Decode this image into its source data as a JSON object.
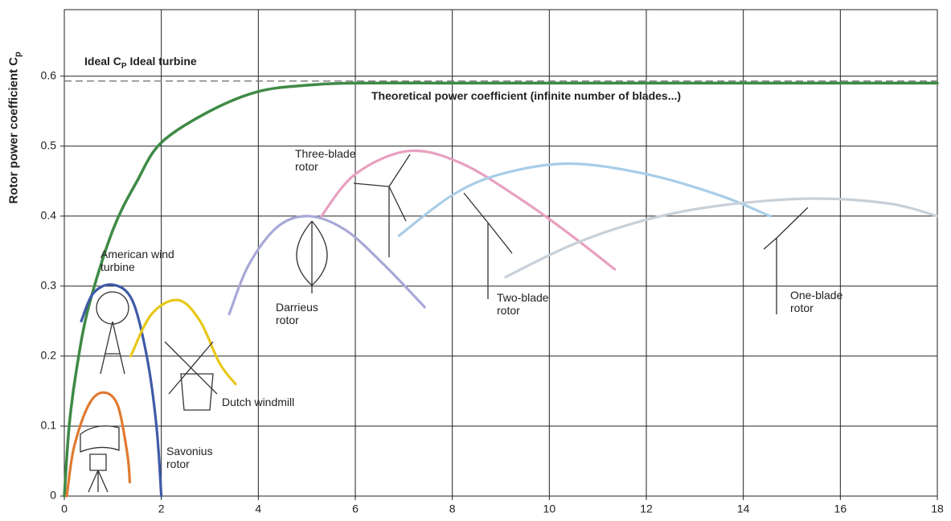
{
  "chart_data": {
    "type": "line",
    "y_label": [
      "Rotor power coefficient C",
      "p"
    ],
    "ideal_label": [
      "Ideal C",
      "P",
      " Ideal turbine"
    ],
    "ideal_cp": 0.593,
    "xlim": [
      0,
      18
    ],
    "xticks": [
      0,
      2,
      4,
      6,
      8,
      10,
      12,
      14,
      16,
      18
    ],
    "ylim": [
      0,
      0.695
    ],
    "yticks": [
      0,
      0.1,
      0.2,
      0.3,
      0.4,
      0.5,
      0.6
    ],
    "grid": true,
    "series": [
      {
        "name": "Theoretical power coefficient (infinite number of blades...)",
        "color": "#3f8a45",
        "x": [
          0,
          0.1,
          0.25,
          0.5,
          1,
          1.5,
          2,
          3,
          4,
          5,
          6,
          8,
          10,
          12,
          14,
          16,
          18
        ],
        "values": [
          0,
          0.1,
          0.18,
          0.27,
          0.38,
          0.45,
          0.505,
          0.55,
          0.578,
          0.587,
          0.59,
          0.59,
          0.59,
          0.59,
          0.59,
          0.59,
          0.59
        ]
      },
      {
        "name": "American wind turbine",
        "color": "#3f5aa8",
        "x": [
          0.35,
          0.6,
          1.0,
          1.4,
          1.7,
          1.9,
          2.0
        ],
        "values": [
          0.25,
          0.29,
          0.302,
          0.28,
          0.2,
          0.1,
          0
        ]
      },
      {
        "name": "Savonius rotor",
        "color": "#e07a30",
        "x": [
          0.05,
          0.2,
          0.5,
          0.8,
          1.1,
          1.3,
          1.35
        ],
        "values": [
          0,
          0.07,
          0.13,
          0.148,
          0.13,
          0.06,
          0.02
        ]
      },
      {
        "name": "Dutch windmill",
        "color": "#e8c81a",
        "x": [
          1.37,
          1.8,
          2.35,
          2.8,
          3.2,
          3.53
        ],
        "values": [
          0.2,
          0.26,
          0.28,
          0.25,
          0.19,
          0.16
        ]
      },
      {
        "name": "Darrieus rotor",
        "color": "#a8a8d8",
        "x": [
          3.4,
          3.8,
          4.4,
          5.05,
          5.8,
          6.6,
          7.43
        ],
        "values": [
          0.26,
          0.33,
          0.385,
          0.4,
          0.38,
          0.33,
          0.27
        ]
      },
      {
        "name": "Three-blade rotor",
        "color": "#e8a0c0",
        "x": [
          5.3,
          6,
          7.1,
          8.2,
          9.5,
          10.5,
          11.35
        ],
        "values": [
          0.4,
          0.46,
          0.493,
          0.475,
          0.42,
          0.37,
          0.324
        ]
      },
      {
        "name": "Two-blade rotor",
        "color": "#a8cde8",
        "x": [
          6.9,
          8,
          9,
          10.4,
          12,
          13.5,
          14.55
        ],
        "values": [
          0.372,
          0.43,
          0.46,
          0.475,
          0.46,
          0.43,
          0.4
        ]
      },
      {
        "name": "One-blade rotor",
        "color": "#c8d0d8",
        "x": [
          9.1,
          10.5,
          12,
          13.5,
          15.4,
          17,
          18
        ],
        "values": [
          0.313,
          0.36,
          0.395,
          0.415,
          0.425,
          0.418,
          0.4
        ]
      }
    ]
  }
}
